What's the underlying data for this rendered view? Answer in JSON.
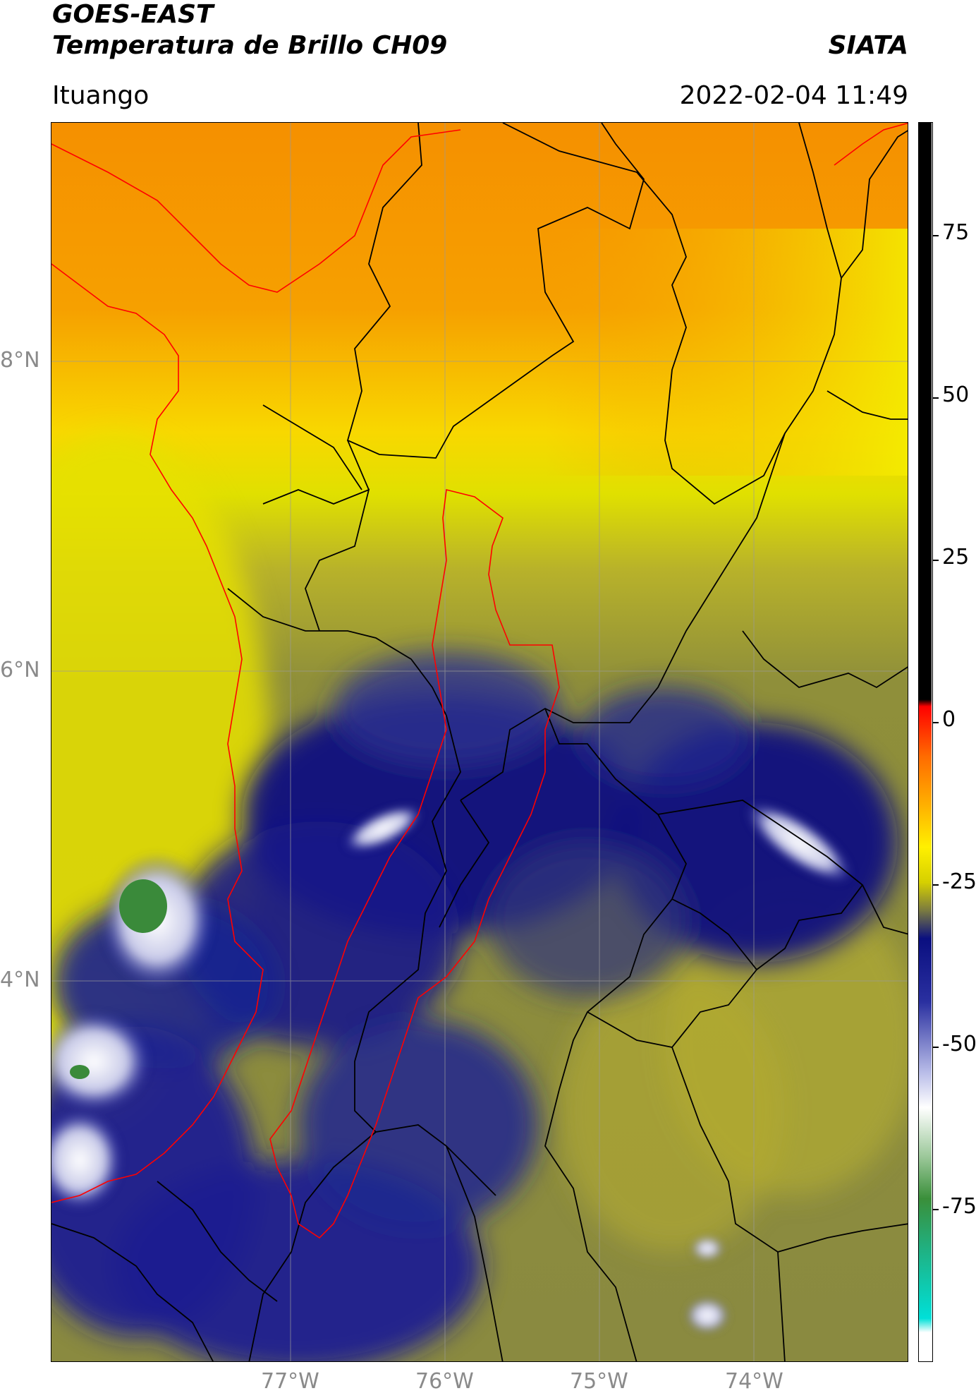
{
  "header": {
    "satellite": "GOES-EAST",
    "product": "Temperatura de Brillo CH09",
    "source": "SIATA",
    "region": "Ituango",
    "datetime": "2022-02-04 11:49"
  },
  "map": {
    "lon_ticks": [
      "77°W",
      "76°W",
      "75°W",
      "74°W"
    ],
    "lat_ticks": [
      "8°N",
      "6°N",
      "4°N"
    ],
    "colors": {
      "warm_orange": "#f59b06",
      "yellow": "#f4f000",
      "olive": "#9a9a2a",
      "dark_navy": "#0b1180",
      "blue": "#3a3fb0",
      "white": "#ffffff",
      "green": "#3a8a3a",
      "border_black": "#000000",
      "boundary_red": "#ff0000"
    }
  },
  "colorbar": {
    "ticks": [
      "75",
      "50",
      "25",
      "0",
      "-25",
      "-50",
      "-75"
    ],
    "stops": [
      {
        "value": 90,
        "color": "#000000"
      },
      {
        "value": 8,
        "color": "#000000"
      },
      {
        "value": 7,
        "color": "#ff0000"
      },
      {
        "value": 0,
        "color": "#ff6a00"
      },
      {
        "value": -7,
        "color": "#ffb000"
      },
      {
        "value": -13,
        "color": "#fff000"
      },
      {
        "value": -18,
        "color": "#d6d000"
      },
      {
        "value": -22,
        "color": "#7a7a40"
      },
      {
        "value": -26,
        "color": "#0a0f80"
      },
      {
        "value": -35,
        "color": "#2a30a0"
      },
      {
        "value": -45,
        "color": "#b8bce8"
      },
      {
        "value": -50,
        "color": "#ffffff"
      },
      {
        "value": -57,
        "color": "#9cc89a"
      },
      {
        "value": -63,
        "color": "#3a8f3a"
      },
      {
        "value": -70,
        "color": "#20b080"
      },
      {
        "value": -80,
        "color": "#00e0d8"
      },
      {
        "value": -82,
        "color": "#ffffff"
      },
      {
        "value": -86,
        "color": "#ffffff"
      }
    ]
  }
}
